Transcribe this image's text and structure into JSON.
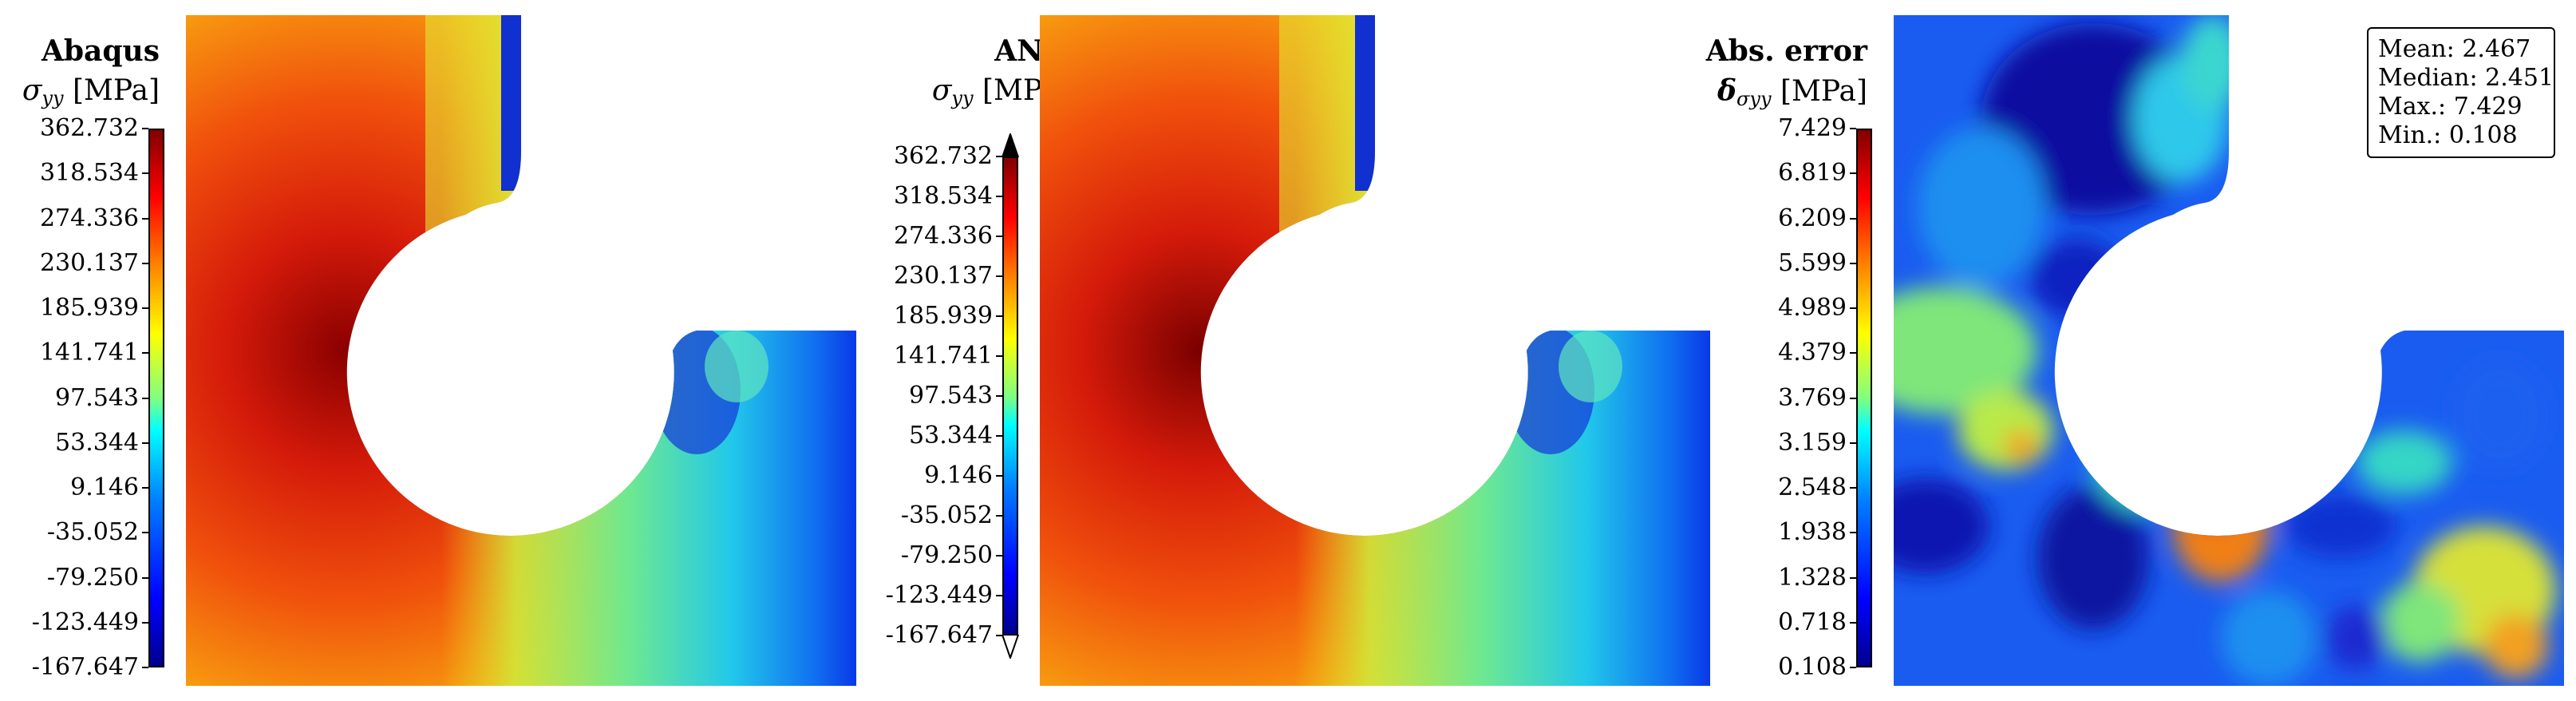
{
  "chart_data": [
    {
      "type": "heatmap",
      "title": "Abaqus",
      "quantity": "σ",
      "quantity_sub": "yy",
      "unit": "[MPa]",
      "colormap": "jet",
      "colorbar_ticks": [
        "362.732",
        "318.534",
        "274.336",
        "230.137",
        "185.939",
        "141.741",
        "97.543",
        "53.344",
        "9.146",
        "-35.052",
        "-79.250",
        "-123.449",
        "-167.647"
      ],
      "vmin": -167.647,
      "vmax": 362.732,
      "extend_arrows": false
    },
    {
      "type": "heatmap",
      "title": "ANN",
      "quantity": "σ",
      "quantity_sub": "yy",
      "unit": "[MPa]",
      "colormap": "jet",
      "colorbar_ticks": [
        "362.732",
        "318.534",
        "274.336",
        "230.137",
        "185.939",
        "141.741",
        "97.543",
        "53.344",
        "9.146",
        "-35.052",
        "-79.250",
        "-123.449",
        "-167.647"
      ],
      "vmin": -167.647,
      "vmax": 362.732,
      "extend_arrows": true
    },
    {
      "type": "heatmap",
      "title": "Abs. error",
      "quantity": "δ",
      "quantity_sub": "σyy",
      "unit": "[MPa]",
      "colormap": "jet",
      "colorbar_ticks": [
        "7.429",
        "6.819",
        "6.209",
        "5.599",
        "4.989",
        "4.379",
        "3.769",
        "3.159",
        "2.548",
        "1.938",
        "1.328",
        "0.718",
        "0.108"
      ],
      "vmin": 0.108,
      "vmax": 7.429,
      "extend_arrows": false,
      "stats": [
        {
          "label": "Mean:",
          "value": "2.467"
        },
        {
          "label": "Median:",
          "value": "2.451"
        },
        {
          "label": "Max.:",
          "value": "7.429"
        },
        {
          "label": "Min.:",
          "value": "0.108"
        }
      ]
    }
  ]
}
